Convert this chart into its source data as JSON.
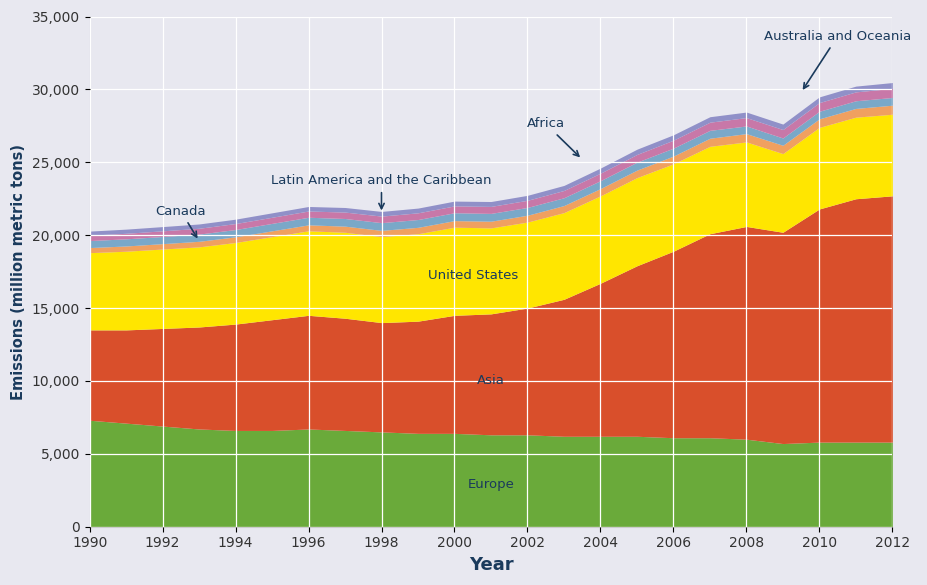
{
  "years": [
    1990,
    1991,
    1992,
    1993,
    1994,
    1995,
    1996,
    1997,
    1998,
    1999,
    2000,
    2001,
    2002,
    2003,
    2004,
    2005,
    2006,
    2007,
    2008,
    2009,
    2010,
    2011,
    2012
  ],
  "Europe": [
    7300,
    7100,
    6900,
    6700,
    6600,
    6600,
    6700,
    6600,
    6500,
    6400,
    6400,
    6300,
    6300,
    6200,
    6200,
    6200,
    6100,
    6100,
    6000,
    5700,
    5800,
    5800,
    5800
  ],
  "Asia": [
    6200,
    6400,
    6700,
    7000,
    7300,
    7600,
    7800,
    7700,
    7500,
    7700,
    8100,
    8300,
    8700,
    9400,
    10500,
    11700,
    12800,
    14000,
    14600,
    14500,
    16000,
    16700,
    16900
  ],
  "United_States": [
    5300,
    5400,
    5450,
    5500,
    5600,
    5700,
    5800,
    5900,
    5900,
    6000,
    6050,
    5900,
    5900,
    5950,
    6000,
    6050,
    6000,
    6000,
    5800,
    5400,
    5600,
    5600,
    5600
  ],
  "Latin_America": [
    350,
    360,
    370,
    380,
    390,
    400,
    410,
    420,
    430,
    440,
    450,
    460,
    470,
    485,
    500,
    515,
    530,
    555,
    570,
    570,
    585,
    600,
    620
  ],
  "Canada": [
    480,
    490,
    490,
    495,
    500,
    510,
    520,
    525,
    530,
    535,
    540,
    535,
    535,
    535,
    540,
    545,
    545,
    540,
    525,
    500,
    520,
    525,
    530
  ],
  "Africa": [
    370,
    380,
    390,
    400,
    410,
    420,
    430,
    440,
    450,
    460,
    470,
    480,
    490,
    500,
    515,
    530,
    545,
    560,
    575,
    580,
    595,
    610,
    625
  ],
  "Australia": [
    280,
    285,
    290,
    295,
    300,
    305,
    310,
    315,
    320,
    325,
    330,
    335,
    340,
    345,
    350,
    360,
    370,
    375,
    380,
    375,
    390,
    395,
    400
  ],
  "colors": {
    "Europe": "#6aaa3a",
    "Asia": "#d94f2b",
    "United_States": "#ffe600",
    "Latin_America": "#f0a060",
    "Canada": "#7aa8c8",
    "Africa": "#c878a8",
    "Australia": "#9090c8"
  },
  "xlabel": "Year",
  "ylabel": "Emissions (million metric tons)",
  "ylim": [
    0,
    35000
  ],
  "yticks": [
    0,
    5000,
    10000,
    15000,
    20000,
    25000,
    30000,
    35000
  ],
  "xticks": [
    1990,
    1992,
    1994,
    1996,
    1998,
    2000,
    2002,
    2004,
    2006,
    2008,
    2010,
    2012
  ],
  "bg_color": "#e8e8f0",
  "ann_color": "#1a3a5c"
}
